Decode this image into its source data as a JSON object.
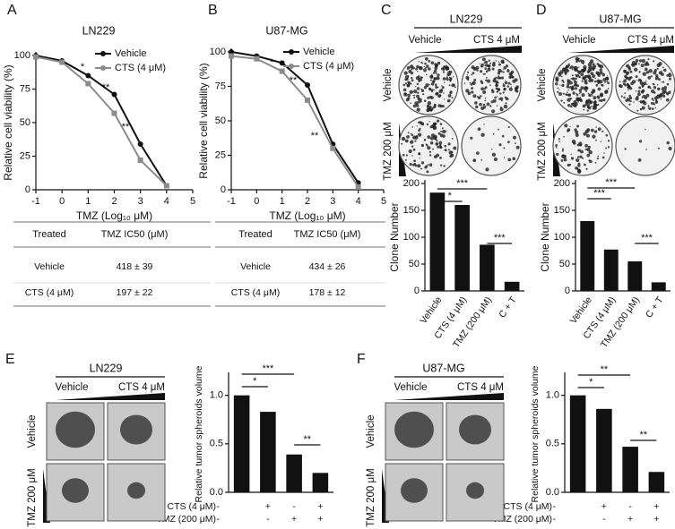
{
  "panel_labels": [
    "A",
    "B",
    "C",
    "D",
    "E",
    "F"
  ],
  "chart_data": [
    {
      "type": "line",
      "title": "LN229",
      "xlabel": "TMZ (Log₁₀ μM)",
      "ylabel": "Relative cell viability (%)",
      "x": [
        -1,
        0,
        1,
        2,
        3,
        4
      ],
      "xlim": [
        -1,
        5
      ],
      "xticks": [
        -1,
        0,
        1,
        2,
        3,
        4,
        5
      ],
      "ylim": [
        0,
        100
      ],
      "yticks": [
        0,
        25,
        50,
        75,
        100
      ],
      "series": [
        {
          "name": "Vehicle",
          "color": "#111111",
          "values": [
            100,
            96,
            85,
            71,
            34,
            3
          ]
        },
        {
          "name": "CTS (4 μM)",
          "color": "#8c8c8c",
          "values": [
            99,
            95,
            79,
            57,
            22,
            3
          ]
        }
      ],
      "annotations": [
        "*",
        "**",
        "**"
      ]
    },
    {
      "type": "line",
      "title": "U87-MG",
      "xlabel": "TMZ (Log₁₀ μM)",
      "ylabel": "Relative cell viability (%)",
      "x": [
        -1,
        0,
        1,
        2,
        3,
        4
      ],
      "xlim": [
        -1,
        5
      ],
      "xticks": [
        -1,
        0,
        1,
        2,
        3,
        4,
        5
      ],
      "ylim": [
        0,
        100
      ],
      "yticks": [
        0,
        25,
        50,
        75,
        100
      ],
      "series": [
        {
          "name": "Vehicle",
          "color": "#111111",
          "values": [
            100,
            97,
            92,
            76,
            33,
            5
          ]
        },
        {
          "name": "CTS (4 μM)",
          "color": "#8c8c8c",
          "values": [
            97,
            95,
            86,
            65,
            30,
            2
          ]
        }
      ],
      "annotations": [
        "*",
        "**",
        "**"
      ]
    },
    {
      "type": "bar",
      "ylabel": "Clone Number",
      "color": "#111111",
      "categories": [
        "Vehicle",
        "CTS (4 μM)",
        "TMZ (200 μM)",
        "C + T"
      ],
      "values": [
        183,
        160,
        86,
        17
      ],
      "ylim": [
        0,
        200
      ],
      "yticks": [
        0,
        50,
        100,
        150,
        200
      ],
      "significance": [
        "*",
        "***",
        "***"
      ]
    },
    {
      "type": "bar",
      "ylabel": "Clone Number",
      "color": "#111111",
      "categories": [
        "Vehicle",
        "CTS (4 μM)",
        "TMZ (200 μM)",
        "C + T"
      ],
      "values": [
        130,
        77,
        55,
        16
      ],
      "ylim": [
        0,
        200
      ],
      "yticks": [
        0,
        50,
        100,
        150,
        200
      ],
      "significance": [
        "***",
        "***",
        "***"
      ]
    },
    {
      "type": "bar",
      "ylabel": "Relative tumor spheroids volume",
      "color": "#111111",
      "categories": [
        null,
        null,
        null,
        null
      ],
      "values": [
        1.0,
        0.83,
        0.39,
        0.2
      ],
      "ylim": [
        0,
        1.2
      ],
      "yticks": [
        {
          "value": 0,
          "label": "0.0"
        },
        {
          "value": 0.5,
          "label": "0.5"
        },
        {
          "value": 1,
          "label": "1.0"
        }
      ],
      "significance": [
        "*",
        "***",
        "**"
      ],
      "conditions": [
        {
          "label": "CTS (4 μM)",
          "signs": [
            "-",
            "+",
            "-",
            "+"
          ]
        },
        {
          "label": "TMZ (200 μM)",
          "signs": [
            "-",
            "-",
            "+",
            "+"
          ]
        }
      ]
    },
    {
      "type": "bar",
      "ylabel": "Relative tumor spheroids volume",
      "color": "#111111",
      "categories": [
        null,
        null,
        null,
        null
      ],
      "values": [
        1.0,
        0.86,
        0.47,
        0.21
      ],
      "ylim": [
        0,
        1.2
      ],
      "yticks": [
        {
          "value": 0,
          "label": "0.0"
        },
        {
          "value": 0.5,
          "label": "0.5"
        },
        {
          "value": 1,
          "label": "1.0"
        }
      ],
      "significance": [
        "*",
        "**",
        "**"
      ],
      "conditions": [
        {
          "label": "CTS (4 μM)",
          "signs": [
            "-",
            "+",
            "-",
            "+"
          ]
        },
        {
          "label": "TMZ (200 μM)",
          "signs": [
            "-",
            "-",
            "+",
            "+"
          ]
        }
      ]
    }
  ],
  "tables": [
    {
      "header": [
        "Treated",
        "TMZ IC50 (μM)"
      ],
      "rows": [
        [
          "Vehicle",
          "418 ± 39"
        ],
        [
          "CTS (4 μM)",
          "197 ± 22"
        ]
      ]
    },
    {
      "header": [
        "Treated",
        "TMZ IC50 (μM)"
      ],
      "rows": [
        [
          "Vehicle",
          "434 ± 26"
        ],
        [
          "CTS (4 μM)",
          "178 ± 12"
        ]
      ]
    }
  ],
  "images": [
    {
      "title": "LN229",
      "columns": [
        "Vehicle",
        "CTS 4 μM"
      ],
      "rows": [
        "Vehicle",
        "TMZ 200 μM"
      ]
    },
    {
      "title": "U87-MG",
      "columns": [
        "Vehicle",
        "CTS 4 μM"
      ],
      "rows": [
        "Vehicle",
        "TMZ 200 μM"
      ]
    },
    {
      "title": "LN229",
      "columns": [
        "Vehicle",
        "CTS 4 μM"
      ],
      "rows": [
        "Vehicle",
        "TMZ 200 μM"
      ]
    },
    {
      "title": "U87-MG",
      "columns": [
        "Vehicle",
        "CTS 4 μM"
      ],
      "rows": [
        "Vehicle",
        "TMZ 200 μM"
      ]
    }
  ]
}
